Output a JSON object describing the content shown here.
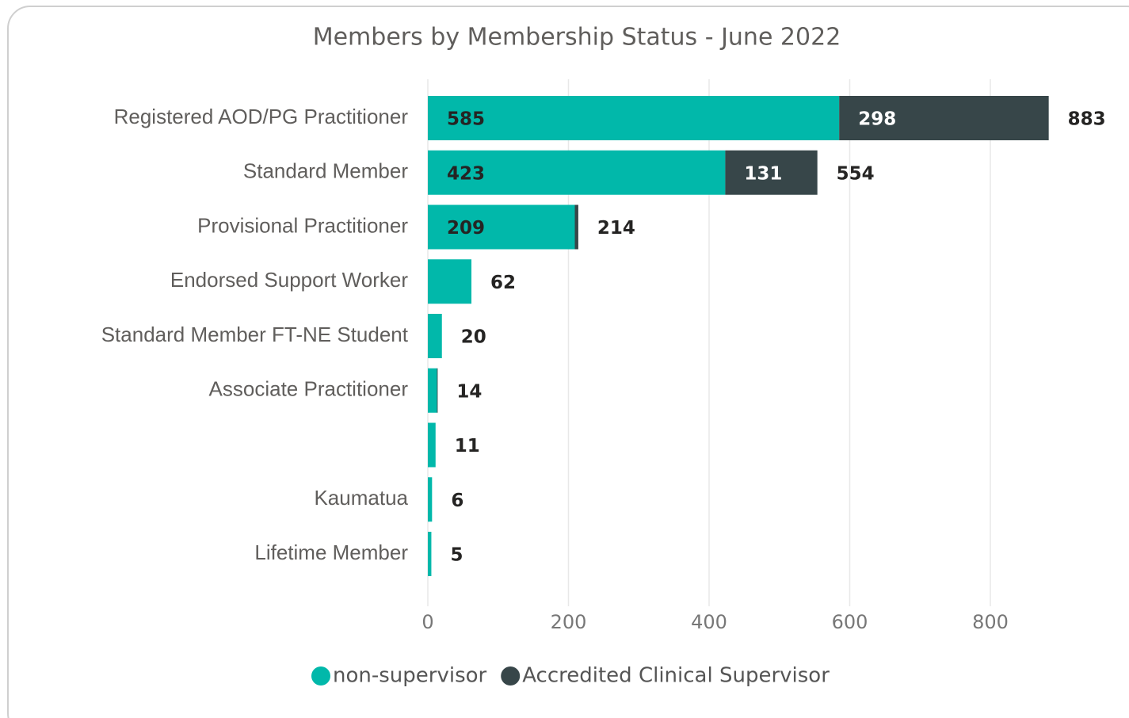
{
  "chart_data": {
    "type": "stacked-bar-horizontal",
    "title": "Members by Membership Status - June 2022",
    "categories": [
      "Registered AOD/PG Practitioner",
      "Standard Member",
      "Provisional Practitioner",
      "Endorsed Support Worker",
      "Standard Member FT-NE Student",
      "Associate Practitioner",
      null,
      "Kaumatua",
      "Lifetime Member"
    ],
    "series": [
      {
        "name": "non-supervisor",
        "color": "#01b8aa",
        "values": [
          585,
          423,
          209,
          62,
          20,
          13,
          11,
          6,
          5
        ],
        "value_labels": [
          "585",
          "423",
          "209",
          null,
          null,
          null,
          null,
          null,
          null
        ]
      },
      {
        "name": "Accredited Clinical Supervisor",
        "color": "#374649",
        "values": [
          298,
          131,
          5,
          0,
          0,
          1,
          0,
          0,
          0
        ],
        "value_labels": [
          "298",
          "131",
          null,
          null,
          null,
          null,
          null,
          null,
          null
        ]
      }
    ],
    "totals": [
      883,
      554,
      214,
      62,
      20,
      14,
      11,
      6,
      5
    ],
    "xlim": [
      0,
      900
    ],
    "xticks": [
      0,
      200,
      400,
      600,
      800
    ],
    "grid": true,
    "legend": "bottom"
  }
}
